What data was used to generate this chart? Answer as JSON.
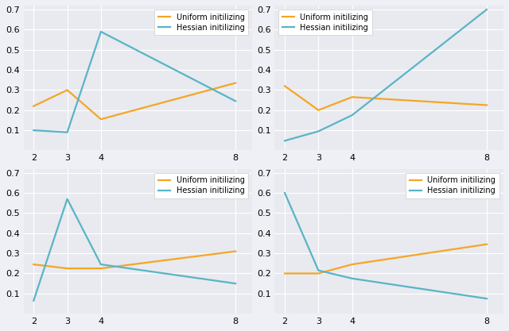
{
  "x": [
    2,
    3,
    4,
    8
  ],
  "plots": [
    {
      "uniform": [
        0.22,
        0.3,
        0.155,
        0.335
      ],
      "hessian": [
        0.1,
        0.09,
        0.59,
        0.245
      ],
      "legend_loc": "upper right"
    },
    {
      "uniform": [
        0.32,
        0.2,
        0.265,
        0.225
      ],
      "hessian": [
        0.048,
        0.095,
        0.175,
        0.7
      ],
      "legend_loc": "upper left"
    },
    {
      "uniform": [
        0.245,
        0.225,
        0.225,
        0.31
      ],
      "hessian": [
        0.065,
        0.57,
        0.245,
        0.15
      ],
      "legend_loc": "upper right"
    },
    {
      "uniform": [
        0.2,
        0.2,
        0.245,
        0.345
      ],
      "hessian": [
        0.6,
        0.215,
        0.175,
        0.075
      ],
      "legend_loc": "upper right"
    }
  ],
  "ylim": [
    0.0,
    0.72
  ],
  "yticks": [
    0.1,
    0.2,
    0.3,
    0.4,
    0.5,
    0.6,
    0.7
  ],
  "xticks": [
    2,
    3,
    4,
    8
  ],
  "uniform_color": "#f5a623",
  "hessian_color": "#5ab4c5",
  "bg_color": "#e8eaf0",
  "figure_color": "#eef0f5",
  "legend_label_uniform": "Uniform initilizing",
  "legend_label_hessian": "Hessian initilizing",
  "linewidth": 1.6,
  "tick_labelsize": 8
}
